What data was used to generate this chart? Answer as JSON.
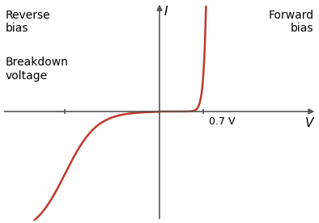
{
  "title": "",
  "xlabel": "V",
  "ylabel": "I",
  "curve_color": "#c0392b",
  "curve_linewidth": 1.8,
  "background_color": "#ffffff",
  "text_reverse_bias": "Reverse\nbias",
  "text_forward_bias": "Forward\nbias",
  "text_breakdown": "Breakdown\nvoltage",
  "text_07v": "0.7 V",
  "axis_color": "#555555",
  "xlim": [
    -2.5,
    2.5
  ],
  "ylim": [
    -2.2,
    2.2
  ],
  "breakdown_voltage": -1.5,
  "forward_voltage": 0.7
}
